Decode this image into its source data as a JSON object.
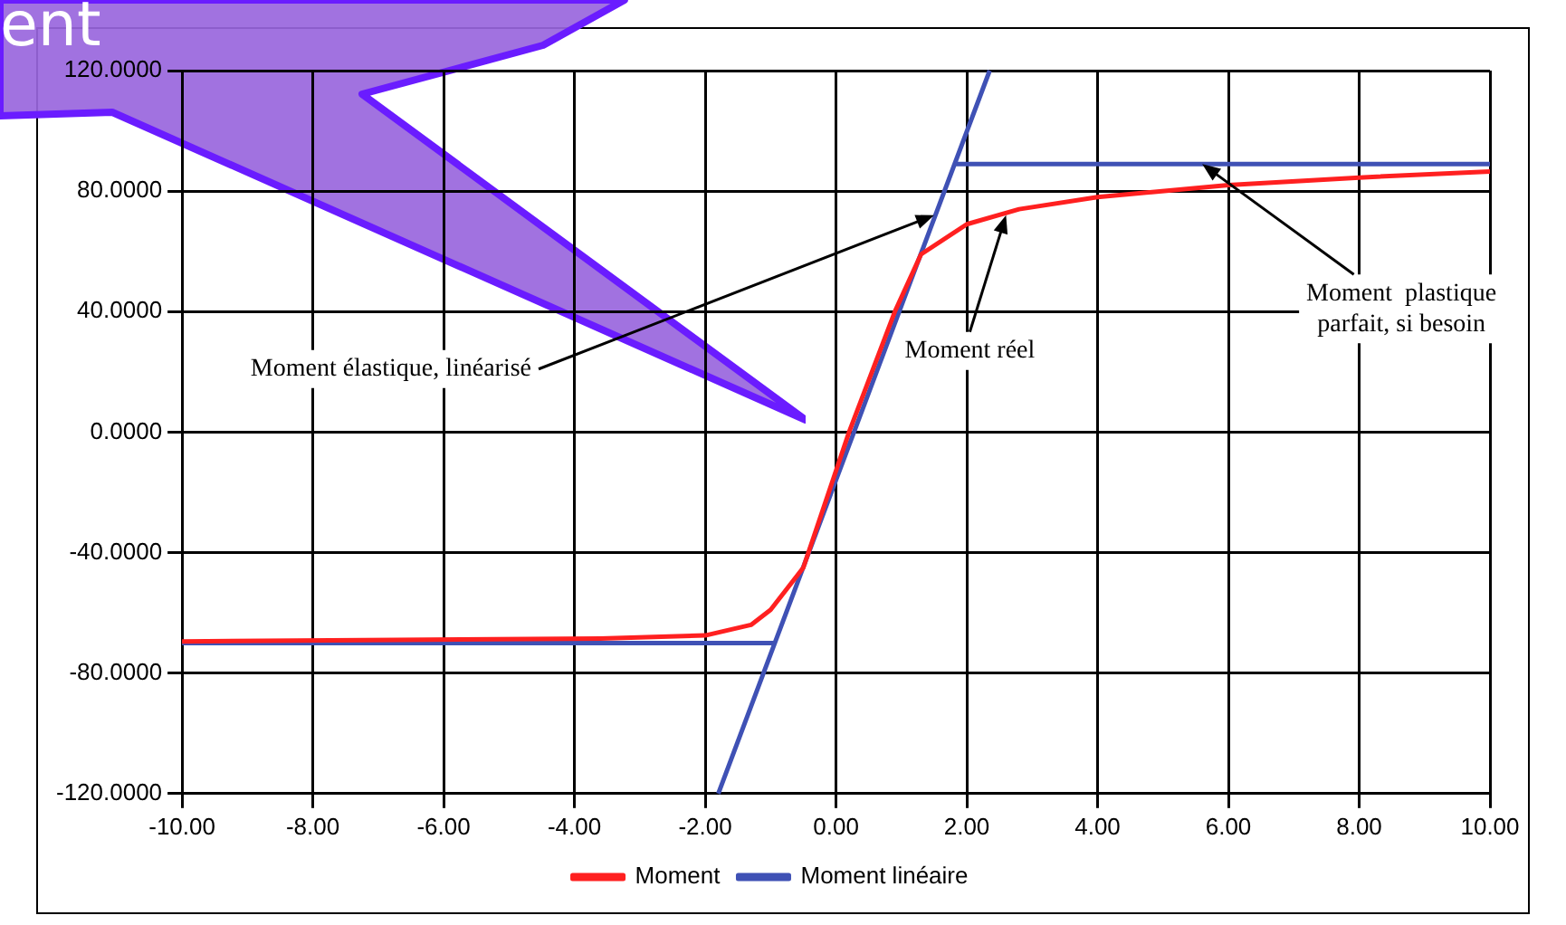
{
  "chart_data": {
    "type": "line",
    "xlim": [
      -10,
      10
    ],
    "xticks": [
      {
        "value": -10,
        "label": "-10.00"
      },
      {
        "value": -8,
        "label": "-8.00"
      },
      {
        "value": -6,
        "label": "-6.00"
      },
      {
        "value": -4,
        "label": "-4.00"
      },
      {
        "value": -2,
        "label": "-2.00"
      },
      {
        "value": 0,
        "label": "0.00"
      },
      {
        "value": 2,
        "label": "2.00"
      },
      {
        "value": 4,
        "label": "4.00"
      },
      {
        "value": 6,
        "label": "6.00"
      },
      {
        "value": 8,
        "label": "8.00"
      },
      {
        "value": 10,
        "label": "10.00"
      }
    ],
    "ylim": [
      -120,
      120
    ],
    "yticks": [
      {
        "value": -120,
        "label": "-120.0000"
      },
      {
        "value": -80,
        "label": "-80.0000"
      },
      {
        "value": -40,
        "label": "-40.0000"
      },
      {
        "value": 0,
        "label": "0.0000"
      },
      {
        "value": 40,
        "label": "40.0000"
      },
      {
        "value": 80,
        "label": "80.0000"
      },
      {
        "value": 120,
        "label": "120.0000"
      }
    ],
    "grid": true,
    "legend": "bottom",
    "marker": "none",
    "line_style": "solid",
    "series": [
      {
        "name": "Moment",
        "color": "#ff2020",
        "x": [
          -10,
          -6.7,
          -3.6,
          -2,
          -1.3,
          -1,
          -0.75,
          -0.5,
          0.2,
          0.9,
          1.3,
          2,
          2.8,
          4,
          6,
          8,
          10
        ],
        "values": [
          -69.5,
          -69,
          -68.5,
          -67.5,
          -64,
          -59,
          -52,
          -45,
          0,
          40,
          59,
          69,
          74,
          78,
          82,
          84.5,
          86.5
        ]
      },
      {
        "name": "Moment linéaire",
        "color": "#3f51b5",
        "x": [
          -10,
          -0.95,
          null,
          -1.8,
          2.35,
          null,
          1.8,
          10
        ],
        "values": [
          -70,
          -70,
          null,
          -120,
          120,
          null,
          89,
          89
        ]
      }
    ],
    "annotations": [
      "ent",
      {
        "text": "Moment élastique, linéarisé",
        "x": 1.5,
        "y": 72
      },
      {
        "text": "Moment réel",
        "x": 2.6,
        "y": 72
      },
      {
        "text": "Moment  plastique\nparfait, si besoin",
        "x": 5.6,
        "y": 89
      }
    ]
  }
}
